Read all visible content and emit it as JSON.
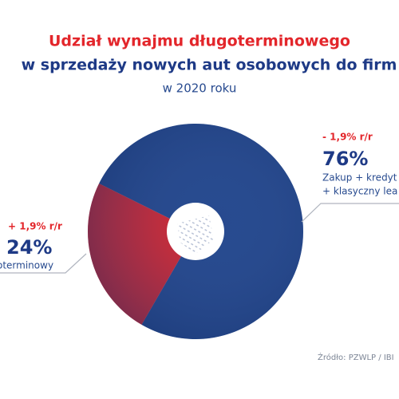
{
  "chart_data": {
    "type": "donut",
    "title": "Udział wynajmu długoterminowego",
    "title_line2": "w sprzedaży nowych aut osobowych do firm",
    "subtitle": "w 2020 roku",
    "values": [
      76,
      24
    ],
    "value_labels": [
      "76%",
      "24%"
    ],
    "colors": [
      "#274a8f",
      "#e3262b"
    ],
    "change_labels": [
      "- 1,9% r/r",
      "+ 1,9% r/r"
    ],
    "descriptions": [
      [
        "Zakup + kredyt",
        "+ klasyczny lea"
      ],
      [
        "oterminowy"
      ]
    ],
    "source": "Źródło: PZWLP / IBI"
  }
}
